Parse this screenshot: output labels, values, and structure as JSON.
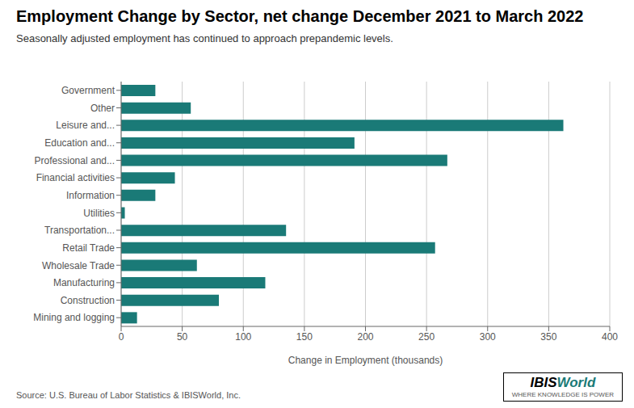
{
  "chart_data": {
    "type": "bar",
    "orientation": "horizontal",
    "title": "Employment Change by Sector, net change December 2021 to March 2022",
    "subtitle": "Seasonally adjusted employment has continued to approach prepandemic levels.",
    "x_label": "Change in Employment (thousands)",
    "annotations": [
      "Source: U.S. Bureau of Labor Statistics & IBISWorld, Inc.",
      "IBIS",
      "World",
      "WHERE KNOWLEDGE IS POWER"
    ],
    "categories": [
      "Mining and logging",
      "Construction",
      "Manufacturing",
      "Wholesale Trade",
      "Retail Trade",
      "Transportation...",
      "Utilities",
      "Information",
      "Financial activities",
      "Professional and...",
      "Education and...",
      "Leisure and...",
      "Other",
      "Government"
    ],
    "values": [
      13,
      80,
      118,
      62,
      257,
      135,
      3,
      28,
      44,
      267,
      191,
      362,
      57,
      28
    ],
    "color": "#1a7a77",
    "xlim": [
      0,
      400
    ],
    "xticks": [
      0,
      50,
      100,
      150,
      200,
      250,
      300,
      350,
      400
    ],
    "grid": true
  }
}
